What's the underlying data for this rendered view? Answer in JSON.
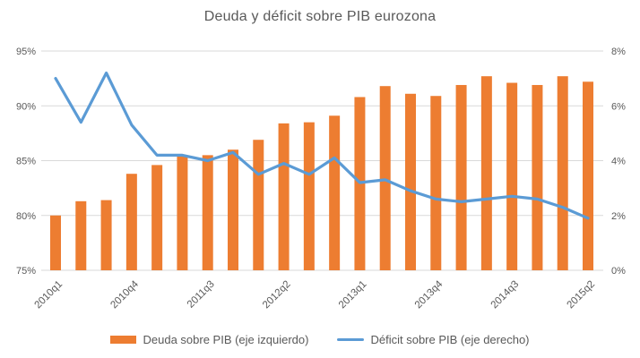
{
  "chart_data": {
    "type": "combo_bar_line",
    "title": "Deuda y déficit sobre PIB eurozona",
    "categories": [
      "2010q1",
      "2010q2",
      "2010q3",
      "2010q4",
      "2011q1",
      "2011q2",
      "2011q3",
      "2011q4",
      "2012q1",
      "2012q2",
      "2012q3",
      "2012q4",
      "2013q1",
      "2013q2",
      "2013q3",
      "2013q4",
      "2014q1",
      "2014q2",
      "2014q3",
      "2014q4",
      "2015q1",
      "2015q2"
    ],
    "x_tick_indices": [
      0,
      3,
      6,
      9,
      12,
      15,
      18,
      21
    ],
    "x_tick_labels_shown": [
      "2010q1",
      "2010q4",
      "2011q3",
      "2012q2",
      "2013q1",
      "2013q4",
      "2014q3",
      "2015q2"
    ],
    "series": [
      {
        "name": "Deuda sobre PIB (eje izquierdo)",
        "type": "bar",
        "axis": "left",
        "values": [
          80.0,
          81.3,
          81.4,
          83.8,
          84.6,
          85.5,
          85.5,
          86.0,
          86.9,
          88.4,
          88.5,
          89.1,
          90.8,
          91.8,
          91.1,
          90.9,
          91.9,
          92.7,
          92.1,
          91.9,
          92.7,
          92.2
        ]
      },
      {
        "name": "Déficit sobre PIB (eje derecho)",
        "type": "line",
        "axis": "right",
        "values": [
          7.0,
          5.4,
          7.2,
          5.3,
          4.2,
          4.2,
          4.0,
          4.3,
          3.5,
          3.9,
          3.5,
          4.1,
          3.2,
          3.3,
          2.9,
          2.6,
          2.5,
          2.6,
          2.7,
          2.6,
          2.3,
          1.9
        ]
      }
    ],
    "left_axis": {
      "min": 75,
      "max": 95,
      "unit": "%",
      "tick_labels": [
        "95%",
        "90%",
        "85%",
        "80%",
        "75%"
      ]
    },
    "right_axis": {
      "min": 0,
      "max": 8,
      "unit": "%",
      "tick_labels": [
        "8%",
        "6%",
        "4%",
        "2%",
        "0%"
      ]
    },
    "grid": true,
    "legend_position": "bottom",
    "colors": {
      "bar": "#ED7D31",
      "line": "#5B9BD5",
      "text": "#595959",
      "grid": "#D9D9D9",
      "background": "#FFFFFF"
    }
  }
}
